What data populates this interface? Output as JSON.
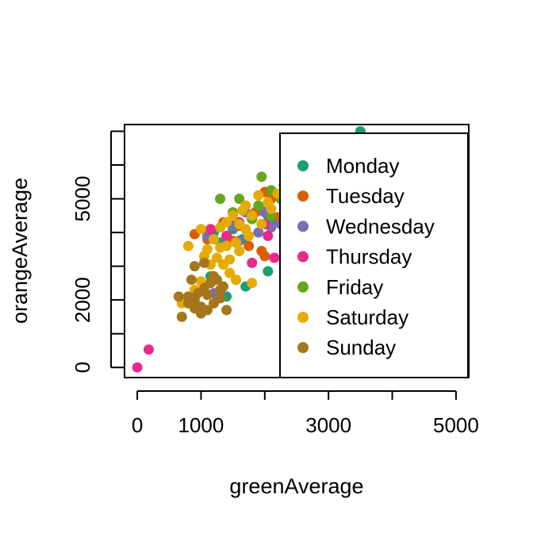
{
  "chart_data": {
    "type": "scatter",
    "title": "",
    "xlabel": "greenAverage",
    "ylabel": "orangeAverage",
    "xlim": [
      -200,
      5200
    ],
    "ylim": [
      -300,
      7200
    ],
    "x_ticks": [
      0,
      1000,
      2000,
      3000,
      4000,
      5000
    ],
    "x_tick_labels": [
      {
        "value": 0,
        "label": "0"
      },
      {
        "value": 1000,
        "label": "1000"
      },
      {
        "value": 3000,
        "label": "3000"
      },
      {
        "value": 5000,
        "label": "5000"
      }
    ],
    "y_ticks": [
      0,
      1000,
      2000,
      3000,
      4000,
      5000,
      6000,
      7000
    ],
    "y_tick_labels": [
      {
        "value": 0,
        "label": "0"
      },
      {
        "value": 2000,
        "label": "2000"
      },
      {
        "value": 5000,
        "label": "5000"
      }
    ],
    "grid": false,
    "legend_position": "top-right",
    "series": [
      {
        "name": "Monday",
        "color": "#1B9E77",
        "points": [
          [
            1200,
            4000
          ],
          [
            1500,
            4100
          ],
          [
            1800,
            4400
          ],
          [
            1950,
            4650
          ],
          [
            1300,
            3700
          ],
          [
            1650,
            3800
          ],
          [
            2100,
            4300
          ],
          [
            2050,
            4500
          ],
          [
            1400,
            2100
          ],
          [
            1700,
            2400
          ],
          [
            1550,
            2600
          ],
          [
            1150,
            2700
          ],
          [
            2050,
            2850
          ],
          [
            2450,
            4200
          ],
          [
            3500,
            7000
          ]
        ]
      },
      {
        "name": "Tuesday",
        "color": "#D95F02",
        "points": [
          [
            900,
            3950
          ],
          [
            1100,
            3800
          ],
          [
            1350,
            4300
          ],
          [
            1600,
            4200
          ],
          [
            1850,
            4600
          ],
          [
            2000,
            5200
          ],
          [
            2100,
            5000
          ],
          [
            2200,
            4450
          ],
          [
            2000,
            3300
          ],
          [
            1750,
            3600
          ],
          [
            1500,
            3750
          ],
          [
            2350,
            4100
          ],
          [
            1950,
            3450
          ]
        ]
      },
      {
        "name": "Wednesday",
        "color": "#7570B3",
        "points": [
          [
            1200,
            2200
          ],
          [
            1100,
            3900
          ],
          [
            1500,
            4200
          ],
          [
            1700,
            4600
          ],
          [
            1900,
            4000
          ],
          [
            2000,
            4600
          ],
          [
            2100,
            4150
          ],
          [
            1600,
            3750
          ],
          [
            2250,
            4250
          ],
          [
            1350,
            3600
          ]
        ]
      },
      {
        "name": "Thursday",
        "color": "#E7298A",
        "points": [
          [
            0,
            0
          ],
          [
            180,
            530
          ],
          [
            1150,
            4100
          ],
          [
            1600,
            4300
          ],
          [
            1800,
            3100
          ],
          [
            2050,
            3900
          ],
          [
            2150,
            3250
          ],
          [
            2300,
            4350
          ],
          [
            2000,
            4250
          ],
          [
            1400,
            3900
          ]
        ]
      },
      {
        "name": "Friday",
        "color": "#66A61E",
        "points": [
          [
            1300,
            5000
          ],
          [
            1600,
            5000
          ],
          [
            1950,
            5650
          ],
          [
            2100,
            5250
          ],
          [
            1800,
            4400
          ],
          [
            2250,
            5000
          ],
          [
            1500,
            4600
          ],
          [
            2100,
            4500
          ],
          [
            1900,
            4800
          ],
          [
            2300,
            5400
          ]
        ]
      },
      {
        "name": "Saturday",
        "color": "#E6AB02",
        "points": [
          [
            800,
            3600
          ],
          [
            1000,
            4100
          ],
          [
            1050,
            3300
          ],
          [
            1100,
            3500
          ],
          [
            1200,
            3800
          ],
          [
            1300,
            3550
          ],
          [
            1400,
            4300
          ],
          [
            1500,
            4500
          ],
          [
            1600,
            4250
          ],
          [
            1700,
            4800
          ],
          [
            1800,
            4500
          ],
          [
            1900,
            5100
          ],
          [
            1950,
            4250
          ],
          [
            2100,
            4700
          ],
          [
            1350,
            3050
          ],
          [
            1250,
            3250
          ],
          [
            1450,
            3200
          ],
          [
            1600,
            3450
          ],
          [
            1700,
            4100
          ],
          [
            1450,
            2800
          ],
          [
            1150,
            3050
          ],
          [
            1550,
            2600
          ],
          [
            2050,
            4900
          ],
          [
            1300,
            4150
          ],
          [
            1750,
            3900
          ],
          [
            2200,
            5150
          ],
          [
            900,
            2300
          ],
          [
            1000,
            2550
          ],
          [
            700,
            1900
          ],
          [
            1550,
            3700
          ],
          [
            1650,
            4650
          ],
          [
            1800,
            2500
          ],
          [
            1400,
            3600
          ]
        ]
      },
      {
        "name": "Sunday",
        "color": "#A6761D",
        "points": [
          [
            700,
            1500
          ],
          [
            650,
            2100
          ],
          [
            800,
            2100
          ],
          [
            900,
            2000
          ],
          [
            1000,
            1800
          ],
          [
            1100,
            1700
          ],
          [
            1200,
            1900
          ],
          [
            1300,
            2050
          ],
          [
            1400,
            1700
          ],
          [
            850,
            2600
          ],
          [
            900,
            3000
          ],
          [
            1050,
            3100
          ],
          [
            800,
            1900
          ],
          [
            950,
            2200
          ],
          [
            1000,
            1600
          ],
          [
            1100,
            2150
          ],
          [
            1150,
            2500
          ],
          [
            1250,
            2600
          ],
          [
            1300,
            2300
          ],
          [
            900,
            1750
          ],
          [
            1050,
            2350
          ],
          [
            1200,
            2700
          ],
          [
            1350,
            2400
          ]
        ]
      }
    ]
  }
}
